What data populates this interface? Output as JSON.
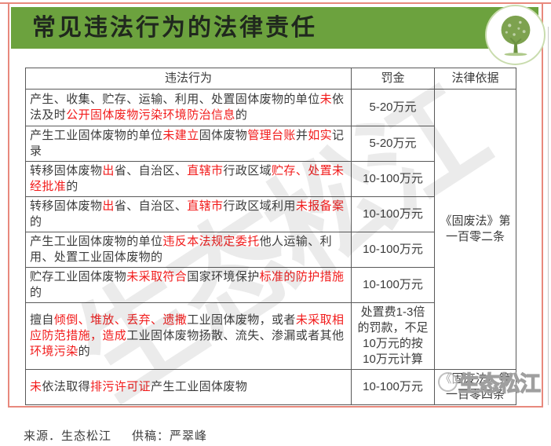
{
  "page": {
    "title": "常见违法行为的法律责任",
    "watermark_big": "生态松江",
    "watermark_corner": "生态松江"
  },
  "colors": {
    "header_green": "#6ca23e",
    "frame_coral": "#e8897d",
    "highlight_red": "#f21b1b",
    "body_text": "#3b3b3b",
    "table_border": "#595959"
  },
  "table": {
    "headers": [
      "违法行为",
      "罚金",
      "法律依据"
    ],
    "legal_basis_group": "《固废法》第\n一百零二条",
    "legal_basis_group_rowspan": 7,
    "legal_basis_last": "《固废法》第\n一百零四条",
    "rows": [
      {
        "behavior": [
          {
            "t": "产生、收集、贮存、运输、利用、处置固体废物的单位",
            "red": false
          },
          {
            "t": "未",
            "red": true
          },
          {
            "t": "依法及时",
            "red": false
          },
          {
            "t": "公开固体废物污染环境防治信息",
            "red": true
          },
          {
            "t": "的",
            "red": false
          }
        ],
        "fine": "5-20万元"
      },
      {
        "behavior": [
          {
            "t": "产生工业固体废物的单位",
            "red": false
          },
          {
            "t": "未建立",
            "red": true
          },
          {
            "t": "固体废物",
            "red": false
          },
          {
            "t": "管理台账",
            "red": true
          },
          {
            "t": "并",
            "red": false
          },
          {
            "t": "如实",
            "red": true
          },
          {
            "t": "记录",
            "red": false
          }
        ],
        "fine": "5-20万元"
      },
      {
        "behavior": [
          {
            "t": "转移固体废物",
            "red": false
          },
          {
            "t": "出",
            "red": true
          },
          {
            "t": "省、自治区、",
            "red": false
          },
          {
            "t": "直辖市",
            "red": true
          },
          {
            "t": "行政区域",
            "red": false
          },
          {
            "t": "贮存、处置未经批准",
            "red": true
          },
          {
            "t": "的",
            "red": false
          }
        ],
        "fine": "10-100万元"
      },
      {
        "behavior": [
          {
            "t": "转移固体废物",
            "red": false
          },
          {
            "t": "出",
            "red": true
          },
          {
            "t": "省、自治区、",
            "red": false
          },
          {
            "t": "直辖市",
            "red": true
          },
          {
            "t": "行政区域利用",
            "red": false
          },
          {
            "t": "未报备案",
            "red": true
          },
          {
            "t": "的",
            "red": false
          }
        ],
        "fine": "10-100万元"
      },
      {
        "behavior": [
          {
            "t": "产生工业固体废物的单位",
            "red": false
          },
          {
            "t": "违反本法规定委托",
            "red": true
          },
          {
            "t": "他人运输、利用、处置工业固体废物的",
            "red": false
          }
        ],
        "fine": "10-100万元"
      },
      {
        "behavior": [
          {
            "t": "贮存工业固体废物",
            "red": false
          },
          {
            "t": "未采取符合",
            "red": true
          },
          {
            "t": "国家环境保护",
            "red": false
          },
          {
            "t": "标准的防护措施",
            "red": true
          },
          {
            "t": "的",
            "red": false
          }
        ],
        "fine": "10-100万元"
      },
      {
        "behavior": [
          {
            "t": "擅自",
            "red": false
          },
          {
            "t": "倾倒、堆放、丢弃、遗撒",
            "red": true
          },
          {
            "t": "工业固体废物，或者",
            "red": false
          },
          {
            "t": "未采取相应防范措施，造成",
            "red": true
          },
          {
            "t": "工业固体废物扬散、流失、渗漏或者其他",
            "red": false
          },
          {
            "t": "环境污染",
            "red": true
          },
          {
            "t": "的",
            "red": false
          }
        ],
        "fine": "处置费1-3倍\n的罚款，不足\n10万元的按\n10万元计算"
      },
      {
        "behavior": [
          {
            "t": "未",
            "red": true
          },
          {
            "t": "依法取得",
            "red": false
          },
          {
            "t": "排污许可证",
            "red": true
          },
          {
            "t": "产生工业固体废物",
            "red": false
          }
        ],
        "fine": "10-100万元"
      }
    ]
  },
  "footer": {
    "source_label": "来源．",
    "source_value": "生态松江",
    "contributor_label": "供稿：",
    "contributor_value": "严翠峰"
  }
}
